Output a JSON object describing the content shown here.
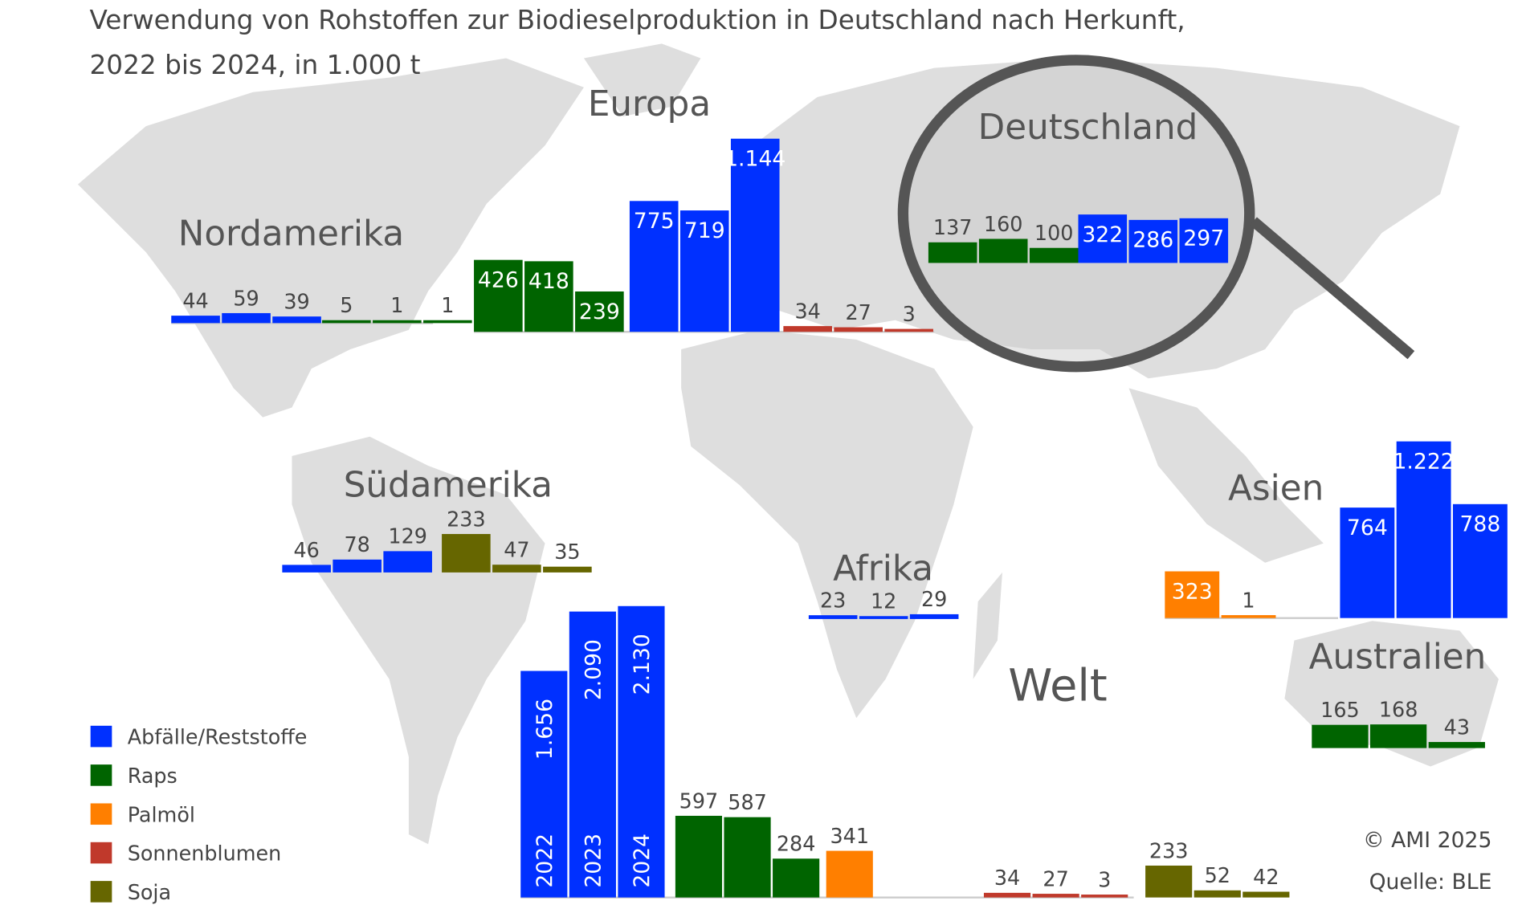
{
  "title_line1": "Verwendung von Rohstoffen zur Biodieselproduktion in Deutschland nach Herkunft,",
  "title_line2": "2022 bis 2024, in 1.000 t",
  "copyright": "© AMI 2025",
  "source": "Quelle: BLE",
  "welt_label": "Welt",
  "colors": {
    "Abfälle/Reststoffe": "#0030ff",
    "Raps": "#006400",
    "Palmöl": "#ff7f00",
    "Sonnenblumen": "#c0392b",
    "Soja": "#666600"
  },
  "legend": [
    "Abfälle/Reststoffe",
    "Raps",
    "Palmöl",
    "Sonnenblumen",
    "Soja"
  ],
  "chart_data": {
    "type": "bar",
    "title": "Verwendung von Rohstoffen zur Biodieselproduktion in Deutschland nach Herkunft, 2022 bis 2024, in 1.000 t",
    "years": [
      "2022",
      "2023",
      "2024"
    ],
    "regions": [
      {
        "name": "Nordamerika",
        "series": [
          {
            "commodity": "Abfälle/Reststoffe",
            "values": [
              44,
              59,
              39
            ]
          },
          {
            "commodity": "Raps",
            "values": [
              5,
              1,
              1
            ]
          }
        ]
      },
      {
        "name": "Europa",
        "series": [
          {
            "commodity": "Raps",
            "values": [
              426,
              418,
              239
            ]
          },
          {
            "commodity": "Abfälle/Reststoffe",
            "values": [
              775,
              719,
              1144
            ]
          },
          {
            "commodity": "Sonnenblumen",
            "values": [
              34,
              27,
              3
            ]
          }
        ]
      },
      {
        "name": "Deutschland",
        "series": [
          {
            "commodity": "Raps",
            "values": [
              137,
              160,
              100
            ]
          },
          {
            "commodity": "Abfälle/Reststoffe",
            "values": [
              322,
              286,
              297
            ]
          }
        ]
      },
      {
        "name": "Südamerika",
        "series": [
          {
            "commodity": "Abfälle/Reststoffe",
            "values": [
              46,
              78,
              129
            ]
          },
          {
            "commodity": "Soja",
            "values": [
              233,
              47,
              35
            ]
          }
        ]
      },
      {
        "name": "Afrika",
        "series": [
          {
            "commodity": "Abfälle/Reststoffe",
            "values": [
              23,
              12,
              29
            ]
          }
        ]
      },
      {
        "name": "Asien",
        "series": [
          {
            "commodity": "Palmöl",
            "values": [
              323,
              1,
              null
            ]
          },
          {
            "commodity": "Abfälle/Reststoffe",
            "values": [
              764,
              1222,
              788
            ]
          }
        ]
      },
      {
        "name": "Australien",
        "series": [
          {
            "commodity": "Raps",
            "values": [
              165,
              168,
              43
            ]
          }
        ]
      },
      {
        "name": "Welt",
        "series": [
          {
            "commodity": "Abfälle/Reststoffe",
            "values": [
              1656,
              2090,
              2130
            ]
          },
          {
            "commodity": "Raps",
            "values": [
              597,
              587,
              284
            ]
          },
          {
            "commodity": "Palmöl",
            "values": [
              341,
              null,
              null
            ]
          },
          {
            "commodity": "Sonnenblumen",
            "values": [
              34,
              27,
              3
            ]
          },
          {
            "commodity": "Soja",
            "values": [
              233,
              52,
              42
            ]
          }
        ]
      }
    ]
  }
}
